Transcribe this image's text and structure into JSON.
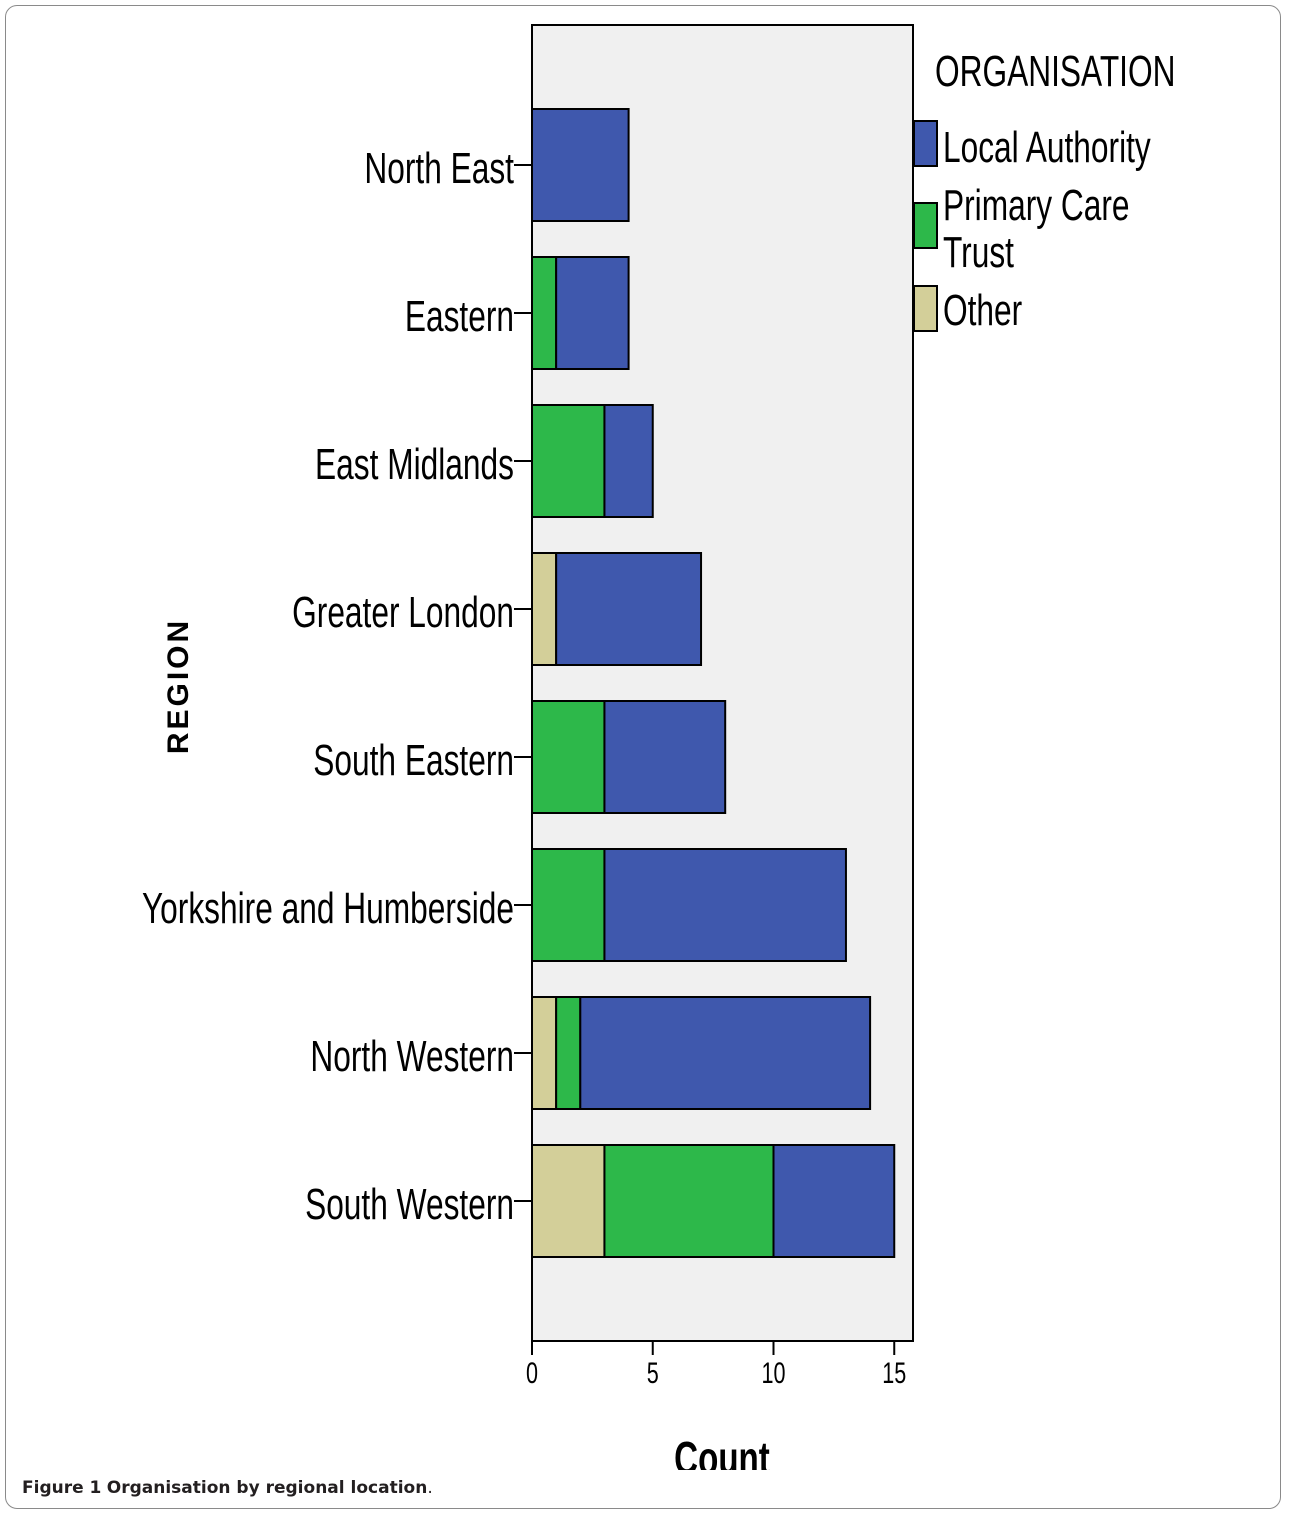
{
  "caption": {
    "label": "Figure 1",
    "text": "Organisation by regional location",
    "period": "."
  },
  "chart_data": {
    "type": "bar",
    "orientation": "horizontal",
    "stacked": true,
    "categories": [
      "North East",
      "Eastern",
      "East Midlands",
      "Greater London",
      "South Eastern",
      "Yorkshire and Humberside",
      "North Western",
      "South Western"
    ],
    "series": [
      {
        "name": "Other",
        "values": [
          0,
          0,
          0,
          1,
          0,
          0,
          1,
          3
        ],
        "color": "#d3cf99"
      },
      {
        "name": "Primary Care Trust",
        "values": [
          0,
          1,
          3,
          0,
          3,
          3,
          1,
          7
        ],
        "color": "#2db84a"
      },
      {
        "name": "Local Authority",
        "values": [
          4,
          3,
          2,
          6,
          5,
          10,
          12,
          5
        ],
        "color": "#3f58ad"
      }
    ],
    "xlabel": "Count",
    "ylabel": "REGION",
    "xlim": [
      0,
      15.8
    ],
    "xticks": [
      0,
      5,
      10,
      15
    ],
    "legend": {
      "title": "ORGANISATION",
      "placement": "right",
      "entries": [
        {
          "lines": [
            "Local Authority"
          ],
          "color": "#3f58ad"
        },
        {
          "lines": [
            "Primary Care",
            "Trust"
          ],
          "color": "#2db84a"
        },
        {
          "lines": [
            "Other"
          ],
          "color": "#d3cf99"
        }
      ]
    },
    "plot_background": "#f0f0f0",
    "grid": false
  }
}
